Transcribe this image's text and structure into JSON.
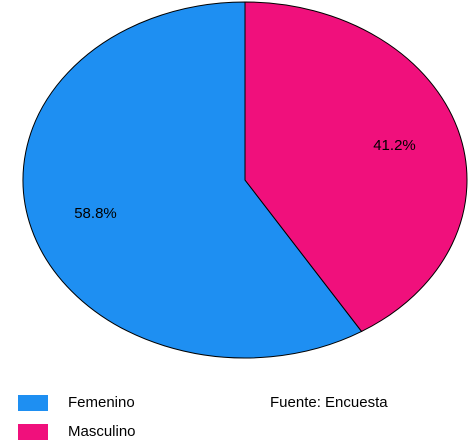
{
  "chart_data": {
    "type": "pie",
    "categories": [
      "Femenino",
      "Masculino"
    ],
    "values": [
      58.8,
      41.2
    ],
    "value_labels": [
      "58.8%",
      "41.2%"
    ],
    "colors": [
      "#1e8ff2",
      "#f0107c"
    ],
    "annotation": "Fuente: Encuesta",
    "legend": "bottom-left"
  }
}
